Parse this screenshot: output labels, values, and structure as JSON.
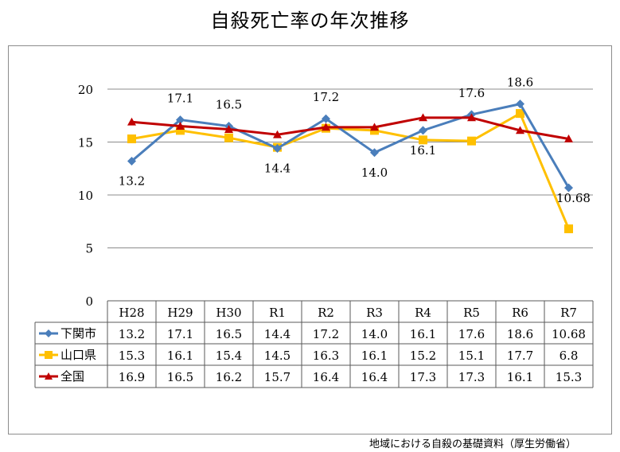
{
  "title": "自殺死亡率の年次推移",
  "source": "地域における自殺の基礎資料（厚生労働省）",
  "chart_data": {
    "type": "line",
    "categories": [
      "H28",
      "H29",
      "H30",
      "R1",
      "R2",
      "R3",
      "R4",
      "R5",
      "R6",
      "R7"
    ],
    "ylim": [
      0,
      20
    ],
    "yticks": [
      0,
      5,
      10,
      15,
      20
    ],
    "grid": true,
    "legend": "data-table",
    "series": [
      {
        "name": "下関市",
        "color": "#4a7ebb",
        "marker": "diamond",
        "values": [
          13.2,
          17.1,
          16.5,
          14.4,
          17.2,
          14.0,
          16.1,
          17.6,
          18.6,
          10.68
        ],
        "labels": [
          "13.2",
          "17.1",
          "16.5",
          "14.4",
          "17.2",
          "14.0",
          "16.1",
          "17.6",
          "18.6",
          "10.68"
        ],
        "data_labels": [
          "13.2",
          "17.1",
          "16.5",
          "14.4",
          "17.2",
          "14.0",
          "16.1",
          "17.6",
          "18.6",
          "10.68"
        ]
      },
      {
        "name": "山口県",
        "color": "#ffc000",
        "marker": "square",
        "values": [
          15.3,
          16.1,
          15.4,
          14.5,
          16.3,
          16.1,
          15.2,
          15.1,
          17.7,
          6.8
        ],
        "labels": [
          "15.3",
          "16.1",
          "15.4",
          "14.5",
          "16.3",
          "16.1",
          "15.2",
          "15.1",
          "17.7",
          "6.8"
        ]
      },
      {
        "name": "全国",
        "color": "#c00000",
        "marker": "triangle",
        "values": [
          16.9,
          16.5,
          16.2,
          15.7,
          16.4,
          16.4,
          17.3,
          17.3,
          16.1,
          15.3
        ],
        "labels": [
          "16.9",
          "16.5",
          "16.2",
          "15.7",
          "16.4",
          "16.4",
          "17.3",
          "17.3",
          "16.1",
          "15.3"
        ]
      }
    ]
  }
}
